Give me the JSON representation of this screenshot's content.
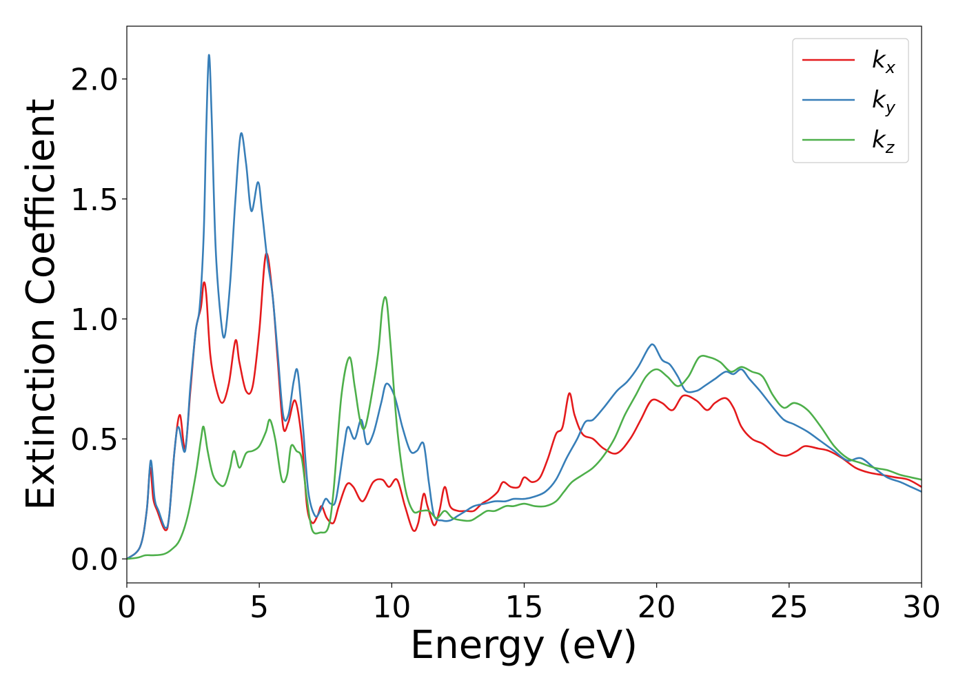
{
  "chart_data": {
    "type": "line",
    "title": "",
    "xlabel": "Energy (eV)",
    "ylabel": "Extinction Coefficient",
    "xlim": [
      0,
      30
    ],
    "ylim": [
      -0.1,
      2.22
    ],
    "xticks": [
      0,
      5,
      10,
      15,
      20,
      25,
      30
    ],
    "xtick_labels": [
      "0",
      "5",
      "10",
      "15",
      "20",
      "25",
      "30"
    ],
    "yticks": [
      0.0,
      0.5,
      1.0,
      1.5,
      2.0
    ],
    "ytick_labels": [
      "0.0",
      "0.5",
      "1.0",
      "1.5",
      "2.0"
    ],
    "grid": false,
    "legend": "top-right",
    "series": [
      {
        "name": "k",
        "sub": "x",
        "color": "#e41a1c",
        "points": [
          [
            0,
            0
          ],
          [
            0.5,
            0.05
          ],
          [
            0.75,
            0.2
          ],
          [
            0.88,
            0.38
          ],
          [
            1.0,
            0.25
          ],
          [
            1.15,
            0.2
          ],
          [
            1.45,
            0.12
          ],
          [
            1.6,
            0.18
          ],
          [
            1.8,
            0.45
          ],
          [
            2.0,
            0.6
          ],
          [
            2.2,
            0.46
          ],
          [
            2.4,
            0.7
          ],
          [
            2.6,
            0.95
          ],
          [
            2.8,
            1.05
          ],
          [
            2.9,
            1.15
          ],
          [
            3.0,
            1.1
          ],
          [
            3.15,
            0.85
          ],
          [
            3.35,
            0.72
          ],
          [
            3.6,
            0.65
          ],
          [
            3.85,
            0.73
          ],
          [
            4.1,
            0.91
          ],
          [
            4.25,
            0.82
          ],
          [
            4.5,
            0.7
          ],
          [
            4.75,
            0.72
          ],
          [
            5.0,
            0.95
          ],
          [
            5.25,
            1.27
          ],
          [
            5.5,
            1.1
          ],
          [
            5.7,
            0.82
          ],
          [
            5.9,
            0.55
          ],
          [
            6.1,
            0.57
          ],
          [
            6.35,
            0.66
          ],
          [
            6.6,
            0.5
          ],
          [
            6.8,
            0.22
          ],
          [
            7.0,
            0.15
          ],
          [
            7.2,
            0.18
          ],
          [
            7.35,
            0.22
          ],
          [
            7.55,
            0.17
          ],
          [
            7.8,
            0.15
          ],
          [
            8.0,
            0.22
          ],
          [
            8.3,
            0.31
          ],
          [
            8.55,
            0.3
          ],
          [
            8.9,
            0.24
          ],
          [
            9.3,
            0.32
          ],
          [
            9.65,
            0.33
          ],
          [
            9.9,
            0.3
          ],
          [
            10.2,
            0.33
          ],
          [
            10.5,
            0.22
          ],
          [
            10.8,
            0.12
          ],
          [
            11.0,
            0.15
          ],
          [
            11.2,
            0.27
          ],
          [
            11.35,
            0.22
          ],
          [
            11.6,
            0.14
          ],
          [
            11.8,
            0.2
          ],
          [
            12.0,
            0.3
          ],
          [
            12.2,
            0.22
          ],
          [
            12.5,
            0.2
          ],
          [
            12.8,
            0.2
          ],
          [
            13.1,
            0.2
          ],
          [
            13.4,
            0.23
          ],
          [
            13.7,
            0.25
          ],
          [
            14.0,
            0.28
          ],
          [
            14.2,
            0.32
          ],
          [
            14.5,
            0.3
          ],
          [
            14.8,
            0.3
          ],
          [
            15.0,
            0.34
          ],
          [
            15.3,
            0.32
          ],
          [
            15.6,
            0.34
          ],
          [
            15.9,
            0.42
          ],
          [
            16.2,
            0.52
          ],
          [
            16.45,
            0.55
          ],
          [
            16.7,
            0.69
          ],
          [
            16.9,
            0.6
          ],
          [
            17.2,
            0.52
          ],
          [
            17.6,
            0.5
          ],
          [
            18.0,
            0.46
          ],
          [
            18.5,
            0.44
          ],
          [
            19.0,
            0.5
          ],
          [
            19.4,
            0.58
          ],
          [
            19.8,
            0.66
          ],
          [
            20.2,
            0.65
          ],
          [
            20.6,
            0.62
          ],
          [
            21.0,
            0.68
          ],
          [
            21.5,
            0.66
          ],
          [
            21.9,
            0.62
          ],
          [
            22.2,
            0.65
          ],
          [
            22.6,
            0.67
          ],
          [
            22.9,
            0.63
          ],
          [
            23.2,
            0.55
          ],
          [
            23.6,
            0.5
          ],
          [
            24.0,
            0.48
          ],
          [
            24.5,
            0.44
          ],
          [
            24.9,
            0.43
          ],
          [
            25.3,
            0.45
          ],
          [
            25.6,
            0.47
          ],
          [
            26.1,
            0.46
          ],
          [
            26.5,
            0.45
          ],
          [
            27.0,
            0.42
          ],
          [
            27.5,
            0.38
          ],
          [
            28.0,
            0.36
          ],
          [
            28.5,
            0.35
          ],
          [
            29.0,
            0.34
          ],
          [
            29.5,
            0.33
          ],
          [
            30.0,
            0.3
          ]
        ]
      },
      {
        "name": "k",
        "sub": "y",
        "color": "#377eb8",
        "points": [
          [
            0,
            0
          ],
          [
            0.5,
            0.05
          ],
          [
            0.75,
            0.2
          ],
          [
            0.9,
            0.41
          ],
          [
            1.05,
            0.25
          ],
          [
            1.2,
            0.2
          ],
          [
            1.45,
            0.13
          ],
          [
            1.6,
            0.18
          ],
          [
            1.8,
            0.45
          ],
          [
            1.95,
            0.55
          ],
          [
            2.2,
            0.45
          ],
          [
            2.4,
            0.72
          ],
          [
            2.6,
            0.95
          ],
          [
            2.75,
            1.05
          ],
          [
            2.9,
            1.35
          ],
          [
            3.0,
            1.8
          ],
          [
            3.1,
            2.1
          ],
          [
            3.2,
            1.85
          ],
          [
            3.35,
            1.3
          ],
          [
            3.55,
            1.0
          ],
          [
            3.7,
            0.93
          ],
          [
            3.9,
            1.15
          ],
          [
            4.1,
            1.5
          ],
          [
            4.3,
            1.77
          ],
          [
            4.5,
            1.65
          ],
          [
            4.7,
            1.45
          ],
          [
            4.95,
            1.57
          ],
          [
            5.1,
            1.45
          ],
          [
            5.3,
            1.25
          ],
          [
            5.5,
            1.1
          ],
          [
            5.7,
            0.85
          ],
          [
            5.9,
            0.6
          ],
          [
            6.1,
            0.6
          ],
          [
            6.3,
            0.74
          ],
          [
            6.45,
            0.78
          ],
          [
            6.65,
            0.55
          ],
          [
            6.85,
            0.28
          ],
          [
            7.1,
            0.18
          ],
          [
            7.3,
            0.2
          ],
          [
            7.5,
            0.25
          ],
          [
            7.7,
            0.23
          ],
          [
            7.9,
            0.25
          ],
          [
            8.2,
            0.47
          ],
          [
            8.35,
            0.55
          ],
          [
            8.6,
            0.5
          ],
          [
            8.85,
            0.58
          ],
          [
            9.05,
            0.48
          ],
          [
            9.3,
            0.52
          ],
          [
            9.6,
            0.65
          ],
          [
            9.8,
            0.73
          ],
          [
            10.1,
            0.68
          ],
          [
            10.4,
            0.55
          ],
          [
            10.7,
            0.45
          ],
          [
            10.95,
            0.45
          ],
          [
            11.2,
            0.48
          ],
          [
            11.4,
            0.32
          ],
          [
            11.6,
            0.18
          ],
          [
            11.9,
            0.16
          ],
          [
            12.2,
            0.16
          ],
          [
            12.5,
            0.18
          ],
          [
            12.8,
            0.2
          ],
          [
            13.1,
            0.22
          ],
          [
            13.5,
            0.23
          ],
          [
            13.9,
            0.24
          ],
          [
            14.3,
            0.24
          ],
          [
            14.6,
            0.25
          ],
          [
            15.0,
            0.25
          ],
          [
            15.4,
            0.26
          ],
          [
            15.8,
            0.28
          ],
          [
            16.2,
            0.33
          ],
          [
            16.6,
            0.42
          ],
          [
            17.0,
            0.5
          ],
          [
            17.3,
            0.57
          ],
          [
            17.6,
            0.58
          ],
          [
            18.0,
            0.63
          ],
          [
            18.5,
            0.7
          ],
          [
            18.9,
            0.74
          ],
          [
            19.3,
            0.8
          ],
          [
            19.7,
            0.88
          ],
          [
            19.9,
            0.89
          ],
          [
            20.2,
            0.83
          ],
          [
            20.5,
            0.81
          ],
          [
            20.8,
            0.76
          ],
          [
            21.1,
            0.7
          ],
          [
            21.5,
            0.7
          ],
          [
            21.8,
            0.72
          ],
          [
            22.2,
            0.75
          ],
          [
            22.6,
            0.78
          ],
          [
            22.9,
            0.77
          ],
          [
            23.2,
            0.79
          ],
          [
            23.5,
            0.75
          ],
          [
            23.9,
            0.7
          ],
          [
            24.4,
            0.63
          ],
          [
            24.8,
            0.58
          ],
          [
            25.2,
            0.56
          ],
          [
            25.7,
            0.53
          ],
          [
            26.2,
            0.49
          ],
          [
            26.7,
            0.45
          ],
          [
            27.2,
            0.41
          ],
          [
            27.7,
            0.42
          ],
          [
            28.2,
            0.38
          ],
          [
            28.7,
            0.34
          ],
          [
            29.2,
            0.32
          ],
          [
            29.6,
            0.3
          ],
          [
            30.0,
            0.28
          ]
        ]
      },
      {
        "name": "k",
        "sub": "z",
        "color": "#4daf4a",
        "points": [
          [
            0,
            0
          ],
          [
            0.4,
            0.005
          ],
          [
            0.7,
            0.015
          ],
          [
            1.0,
            0.015
          ],
          [
            1.4,
            0.02
          ],
          [
            1.7,
            0.04
          ],
          [
            2.0,
            0.08
          ],
          [
            2.3,
            0.18
          ],
          [
            2.6,
            0.35
          ],
          [
            2.8,
            0.5
          ],
          [
            2.9,
            0.55
          ],
          [
            3.05,
            0.45
          ],
          [
            3.25,
            0.35
          ],
          [
            3.5,
            0.31
          ],
          [
            3.7,
            0.31
          ],
          [
            3.9,
            0.38
          ],
          [
            4.05,
            0.45
          ],
          [
            4.25,
            0.38
          ],
          [
            4.5,
            0.44
          ],
          [
            4.75,
            0.45
          ],
          [
            5.0,
            0.47
          ],
          [
            5.25,
            0.53
          ],
          [
            5.4,
            0.58
          ],
          [
            5.6,
            0.5
          ],
          [
            5.85,
            0.33
          ],
          [
            6.05,
            0.35
          ],
          [
            6.2,
            0.47
          ],
          [
            6.4,
            0.45
          ],
          [
            6.6,
            0.42
          ],
          [
            6.8,
            0.25
          ],
          [
            7.0,
            0.12
          ],
          [
            7.3,
            0.11
          ],
          [
            7.6,
            0.13
          ],
          [
            7.8,
            0.28
          ],
          [
            8.1,
            0.68
          ],
          [
            8.4,
            0.84
          ],
          [
            8.6,
            0.72
          ],
          [
            8.8,
            0.58
          ],
          [
            9.0,
            0.55
          ],
          [
            9.3,
            0.72
          ],
          [
            9.5,
            0.87
          ],
          [
            9.65,
            1.05
          ],
          [
            9.8,
            1.08
          ],
          [
            9.95,
            0.9
          ],
          [
            10.2,
            0.55
          ],
          [
            10.5,
            0.3
          ],
          [
            10.8,
            0.2
          ],
          [
            11.1,
            0.2
          ],
          [
            11.4,
            0.2
          ],
          [
            11.7,
            0.17
          ],
          [
            12.0,
            0.2
          ],
          [
            12.3,
            0.17
          ],
          [
            12.7,
            0.16
          ],
          [
            13.0,
            0.16
          ],
          [
            13.3,
            0.18
          ],
          [
            13.6,
            0.2
          ],
          [
            13.9,
            0.2
          ],
          [
            14.3,
            0.22
          ],
          [
            14.6,
            0.22
          ],
          [
            15.0,
            0.23
          ],
          [
            15.4,
            0.22
          ],
          [
            15.8,
            0.22
          ],
          [
            16.2,
            0.24
          ],
          [
            16.5,
            0.28
          ],
          [
            16.8,
            0.32
          ],
          [
            17.2,
            0.35
          ],
          [
            17.6,
            0.38
          ],
          [
            18.0,
            0.43
          ],
          [
            18.4,
            0.5
          ],
          [
            18.8,
            0.6
          ],
          [
            19.2,
            0.68
          ],
          [
            19.6,
            0.76
          ],
          [
            20.0,
            0.79
          ],
          [
            20.4,
            0.76
          ],
          [
            20.8,
            0.72
          ],
          [
            21.2,
            0.76
          ],
          [
            21.6,
            0.84
          ],
          [
            22.0,
            0.84
          ],
          [
            22.4,
            0.82
          ],
          [
            22.8,
            0.78
          ],
          [
            23.2,
            0.8
          ],
          [
            23.6,
            0.78
          ],
          [
            24.0,
            0.76
          ],
          [
            24.4,
            0.68
          ],
          [
            24.8,
            0.63
          ],
          [
            25.2,
            0.65
          ],
          [
            25.7,
            0.62
          ],
          [
            26.2,
            0.55
          ],
          [
            26.7,
            0.47
          ],
          [
            27.2,
            0.42
          ],
          [
            27.7,
            0.4
          ],
          [
            28.2,
            0.38
          ],
          [
            28.7,
            0.37
          ],
          [
            29.2,
            0.35
          ],
          [
            29.6,
            0.34
          ],
          [
            30.0,
            0.33
          ]
        ]
      }
    ]
  }
}
